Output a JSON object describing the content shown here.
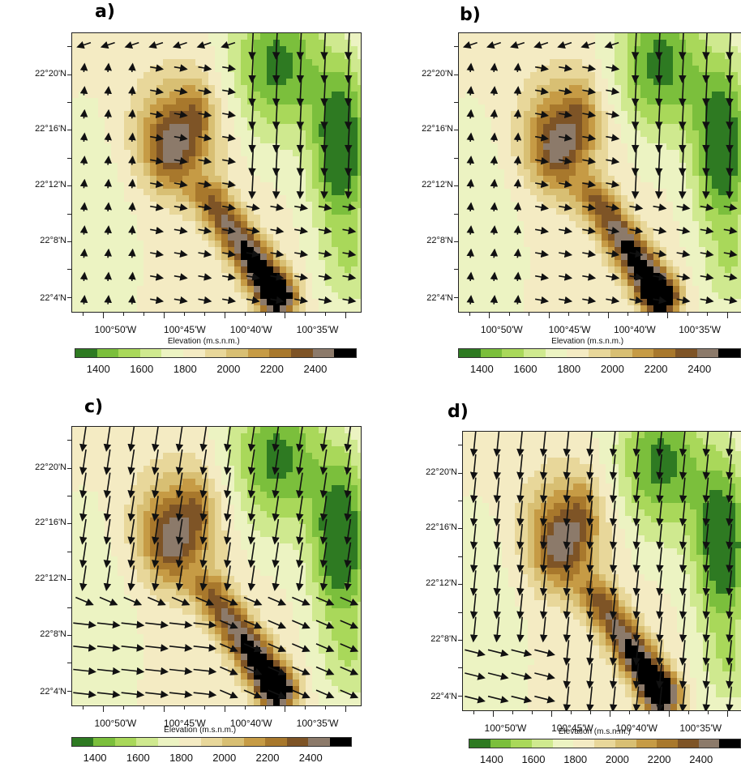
{
  "panels": [
    {
      "id": "a",
      "label": "a)"
    },
    {
      "id": "b",
      "label": "b)"
    },
    {
      "id": "c",
      "label": "c)"
    },
    {
      "id": "d",
      "label": "d)"
    }
  ],
  "lat_labels": [
    "22°20'N",
    "22°16'N",
    "22°12'N",
    "22°8'N",
    "22°4'N"
  ],
  "lon_labels": [
    "100°50'W",
    "100°45'W",
    "100°40'W",
    "100°35'W"
  ],
  "colorbar": {
    "title": "Elevation (m.s.n.m.)",
    "tick_labels": [
      "1400",
      "1600",
      "1800",
      "2000",
      "2200",
      "2400"
    ],
    "colors": [
      "#2e7a22",
      "#7bbf3c",
      "#a9d85a",
      "#cfe98f",
      "#ecf3c2",
      "#f4ebc3",
      "#e8d79a",
      "#d8bf73",
      "#c69b45",
      "#a8782c",
      "#7e5426",
      "#8c7a6a",
      "#000000"
    ]
  },
  "wind_patterns": {
    "a": "weak-southerly-west-easterly-center-northerly-east",
    "b": "weak-southerly-west-easterly-center-northerly-east",
    "c": "northerly-strong-north",
    "d": "strong-northerly"
  }
}
